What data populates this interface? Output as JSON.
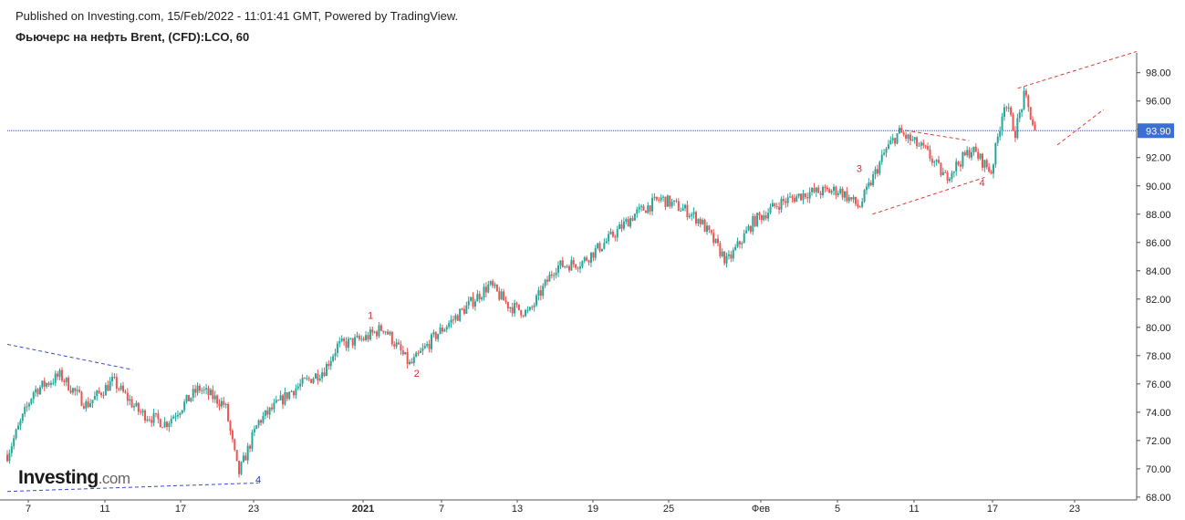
{
  "header": {
    "published": "Published on Investing.com, 15/Feb/2022 - 11:01:41 GMT, Powered by TradingView.",
    "symbol": "Фьючерс на нефть Brent, (CFD):LCO, 60"
  },
  "logo": {
    "main": "Investing",
    "suffix": ".com"
  },
  "colors": {
    "up": "#26a69a",
    "down": "#ef5350",
    "last_price_line": "#3b4bd6",
    "last_price_badge": "#3b6fd6",
    "trend_red": "#e53935",
    "trend_blue": "#3949d1",
    "wave_red": "#d32f2f",
    "wave_blue": "#2432c8",
    "axis_text": "#222222"
  },
  "chart_data": {
    "type": "candlestick",
    "title": "Фьючерс на нефть Brent, (CFD):LCO, 60",
    "interval": "60",
    "ylim": [
      67.8,
      99.4
    ],
    "y_ticks": [
      "68.00",
      "70.00",
      "72.00",
      "74.00",
      "76.00",
      "78.00",
      "80.00",
      "82.00",
      "84.00",
      "86.00",
      "88.00",
      "90.00",
      "92.00",
      "94.00",
      "96.00",
      "98.00"
    ],
    "x_labels": [
      "7",
      "11",
      "17",
      "23",
      "2021",
      "7",
      "13",
      "19",
      "25",
      "Фев",
      "5",
      "11",
      "17",
      "23"
    ],
    "last_price": 93.9,
    "last_price_label": "93.90",
    "price_path": [
      {
        "t": 0,
        "p": 71.0
      },
      {
        "t": 2,
        "p": 75.5
      },
      {
        "t": 4,
        "p": 76.6
      },
      {
        "t": 6,
        "p": 74.5
      },
      {
        "t": 8,
        "p": 76.2
      },
      {
        "t": 10,
        "p": 74.0
      },
      {
        "t": 12,
        "p": 73.2
      },
      {
        "t": 14.5,
        "p": 75.7
      },
      {
        "t": 16.5,
        "p": 74.5
      },
      {
        "t": 17.5,
        "p": 69.6
      },
      {
        "t": 19,
        "p": 73.3
      },
      {
        "t": 21.5,
        "p": 75.5
      },
      {
        "t": 24,
        "p": 77.0
      },
      {
        "t": 25,
        "p": 78.7
      },
      {
        "t": 27,
        "p": 79.2
      },
      {
        "t": 28.5,
        "p": 80.0
      },
      {
        "t": 30.5,
        "p": 77.3
      },
      {
        "t": 32.5,
        "p": 79.5
      },
      {
        "t": 34.5,
        "p": 81.2
      },
      {
        "t": 36.5,
        "p": 83.0
      },
      {
        "t": 38,
        "p": 81.5
      },
      {
        "t": 39.5,
        "p": 81.0
      },
      {
        "t": 41.5,
        "p": 84.3
      },
      {
        "t": 43.5,
        "p": 84.6
      },
      {
        "t": 45.5,
        "p": 86.2
      },
      {
        "t": 47.5,
        "p": 88.0
      },
      {
        "t": 49.5,
        "p": 89.1
      },
      {
        "t": 51.5,
        "p": 88.2
      },
      {
        "t": 52.5,
        "p": 87.5
      },
      {
        "t": 54.5,
        "p": 84.6
      },
      {
        "t": 56.5,
        "p": 87.5
      },
      {
        "t": 58.5,
        "p": 88.8
      },
      {
        "t": 60.5,
        "p": 89.5
      },
      {
        "t": 63,
        "p": 89.7
      },
      {
        "t": 64.5,
        "p": 88.5
      },
      {
        "t": 66.5,
        "p": 92.5
      },
      {
        "t": 67.5,
        "p": 93.8
      },
      {
        "t": 69.5,
        "p": 92.5
      },
      {
        "t": 71,
        "p": 90.6
      },
      {
        "t": 73,
        "p": 92.6
      },
      {
        "t": 74.5,
        "p": 91.0
      },
      {
        "t": 75.5,
        "p": 96.0
      },
      {
        "t": 76.3,
        "p": 93.8
      },
      {
        "t": 77,
        "p": 96.4
      },
      {
        "t": 77.8,
        "p": 93.9
      }
    ],
    "annotations": [
      {
        "label": "4",
        "color": "wave_blue",
        "t": 19.0,
        "p": 69.0
      },
      {
        "label": "1",
        "color": "wave_red",
        "t": 27.5,
        "p": 80.6
      },
      {
        "label": "2",
        "color": "wave_red",
        "t": 31.0,
        "p": 76.5
      },
      {
        "label": "3",
        "color": "wave_red",
        "t": 64.5,
        "p": 91.0
      },
      {
        "label": "4",
        "color": "wave_red",
        "t": 73.8,
        "p": 90.0
      }
    ],
    "trend_lines": [
      {
        "color": "trend_blue",
        "t1": 0,
        "p1": 78.8,
        "t2": 9.5,
        "p2": 77.0
      },
      {
        "color": "trend_blue",
        "t1": 0,
        "p1": 68.4,
        "t2": 19.0,
        "p2": 69.0
      },
      {
        "color": "trend_red",
        "t1": 65.5,
        "p1": 88.0,
        "t2": 74.0,
        "p2": 90.6
      },
      {
        "color": "trend_red",
        "t1": 67.5,
        "p1": 94.0,
        "t2": 72.8,
        "p2": 93.2
      },
      {
        "color": "trend_red",
        "t1": 76.5,
        "p1": 96.9,
        "t2": 85.5,
        "p2": 99.5
      },
      {
        "color": "trend_red",
        "t1": 79.5,
        "p1": 92.9,
        "t2": 83.0,
        "p2": 95.4
      }
    ]
  }
}
